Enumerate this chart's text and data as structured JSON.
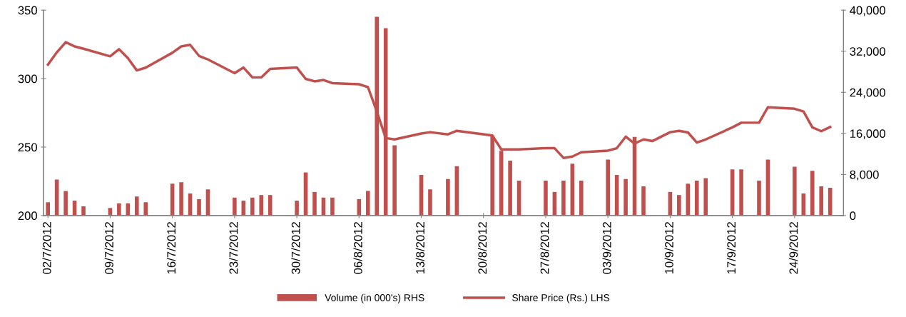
{
  "chart_data": {
    "type": "bar",
    "legend": "bottom",
    "grid": false,
    "xlim": [
      "2012-07-01T12:00",
      "2012-09-29T12:00"
    ],
    "xticks": [
      {
        "value": "2012-07-02",
        "label": "02/7/2012"
      },
      {
        "value": "2012-07-09",
        "label": "09/7/2012"
      },
      {
        "value": "2012-07-16",
        "label": "16/7/2012"
      },
      {
        "value": "2012-07-23",
        "label": "23/7/2012"
      },
      {
        "value": "2012-07-30",
        "label": "30/7/2012"
      },
      {
        "value": "2012-08-06",
        "label": "06/8/2012"
      },
      {
        "value": "2012-08-13",
        "label": "13/8/2012"
      },
      {
        "value": "2012-08-20",
        "label": "20/8/2012"
      },
      {
        "value": "2012-08-27",
        "label": "27/8/2012"
      },
      {
        "value": "2012-09-03",
        "label": "03/9/2012"
      },
      {
        "value": "2012-09-10",
        "label": "10/9/2012"
      },
      {
        "value": "2012-09-17",
        "label": "17/9/2012"
      },
      {
        "value": "2012-09-24",
        "label": "24/9/2012"
      }
    ],
    "ylim": [
      200,
      350
    ],
    "yticks": [
      200,
      250,
      300,
      350
    ],
    "y2lim": [
      0,
      40000
    ],
    "y2ticks": [
      0,
      {
        "value": 8000,
        "label": "8,000"
      },
      {
        "value": 16000,
        "label": "16,000"
      },
      {
        "value": 24000,
        "label": "24,000"
      },
      {
        "value": 32000,
        "label": "32,000"
      },
      {
        "value": 40000,
        "label": "40,000"
      }
    ],
    "x": [
      "2012-07-02",
      "2012-07-03",
      "2012-07-04",
      "2012-07-05",
      "2012-07-06",
      "2012-07-09",
      "2012-07-10",
      "2012-07-11",
      "2012-07-12",
      "2012-07-13",
      "2012-07-16",
      "2012-07-17",
      "2012-07-18",
      "2012-07-19",
      "2012-07-20",
      "2012-07-23",
      "2012-07-24",
      "2012-07-25",
      "2012-07-26",
      "2012-07-27",
      "2012-07-30",
      "2012-07-31",
      "2012-08-01",
      "2012-08-02",
      "2012-08-03",
      "2012-08-06",
      "2012-08-07",
      "2012-08-08",
      "2012-08-09",
      "2012-08-10",
      "2012-08-13",
      "2012-08-14",
      "2012-08-16",
      "2012-08-17",
      "2012-08-21",
      "2012-08-22",
      "2012-08-23",
      "2012-08-24",
      "2012-08-27",
      "2012-08-28",
      "2012-08-29",
      "2012-08-30",
      "2012-08-31",
      "2012-09-03",
      "2012-09-04",
      "2012-09-05",
      "2012-09-06",
      "2012-09-07",
      "2012-09-08",
      "2012-09-10",
      "2012-09-11",
      "2012-09-12",
      "2012-09-13",
      "2012-09-14",
      "2012-09-17",
      "2012-09-18",
      "2012-09-20",
      "2012-09-21",
      "2012-09-24",
      "2012-09-25",
      "2012-09-26",
      "2012-09-27",
      "2012-09-28"
    ],
    "series": [
      {
        "name": "Volume (in 000's) RHS",
        "axis": "y2",
        "color": "#c0504d",
        "values": [
          2600,
          7000,
          4800,
          2900,
          1800,
          1500,
          2400,
          2400,
          3700,
          2600,
          6200,
          6500,
          4300,
          3200,
          5100,
          3500,
          2900,
          3500,
          4000,
          4000,
          2900,
          8400,
          4600,
          3500,
          3500,
          3200,
          4800,
          38700,
          36500,
          13700,
          7900,
          5100,
          7100,
          9600,
          15600,
          12600,
          10700,
          6800,
          6800,
          4600,
          6800,
          10100,
          6800,
          10900,
          7900,
          7100,
          15300,
          5700,
          null,
          4600,
          4000,
          6200,
          6800,
          7300,
          9000,
          9000,
          6800,
          10900,
          9500,
          4300,
          8700,
          5700,
          5400
        ]
      },
      {
        "name": "Share Price (Rs.) LHS",
        "type": "line",
        "axis": "y",
        "color": "#c0504d",
        "values": [
          310.2,
          319.2,
          326.6,
          323.5,
          321.8,
          316.3,
          321.5,
          314.9,
          306.0,
          308.0,
          318.9,
          323.5,
          324.7,
          316.6,
          314.0,
          304.0,
          308.1,
          300.9,
          300.9,
          307.1,
          308.1,
          299.8,
          298.0,
          299.0,
          296.7,
          295.9,
          293.8,
          276.0,
          256.6,
          255.6,
          259.9,
          260.9,
          259.3,
          261.9,
          258.5,
          248.3,
          248.3,
          248.3,
          249.2,
          249.2,
          242.1,
          243.1,
          246.2,
          247.4,
          249.2,
          257.6,
          252.6,
          255.6,
          254.4,
          260.9,
          261.9,
          260.7,
          253.3,
          255.6,
          264.4,
          267.8,
          267.8,
          279.1,
          278.0,
          276.0,
          264.4,
          261.6,
          264.7
        ]
      }
    ]
  }
}
